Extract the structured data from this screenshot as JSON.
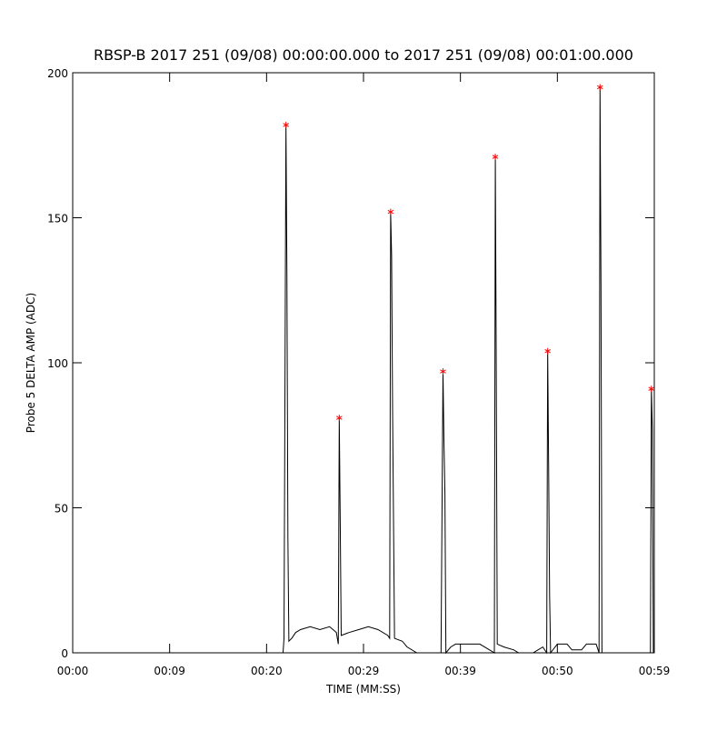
{
  "chart_data": {
    "type": "line",
    "title": "RBSP-B 2017 251 (09/08) 00:00:00.000 to 2017 251 (09/08) 00:01:00.000",
    "x_label": "TIME (MM:SS)",
    "y_label": "Probe 5 DELTA AMP (ADC)",
    "xlim": [
      0,
      60
    ],
    "ylim": [
      0,
      200
    ],
    "xticks": [
      {
        "value": 0,
        "label": "00:00"
      },
      {
        "value": 10,
        "label": "00:09"
      },
      {
        "value": 20,
        "label": "00:20"
      },
      {
        "value": 30,
        "label": "00:29"
      },
      {
        "value": 40,
        "label": "00:39"
      },
      {
        "value": 50,
        "label": "00:50"
      },
      {
        "value": 60,
        "label": "00:59"
      }
    ],
    "yticks": [
      0,
      50,
      100,
      150,
      200
    ],
    "series": [
      {
        "style": "line",
        "color": "#000000",
        "x": [
          0,
          21.7,
          21.8,
          22.0,
          22.1,
          22.2,
          22.3,
          22.6,
          23.0,
          23.5,
          24.5,
          25.5,
          26.5,
          27.2,
          27.4,
          27.5,
          27.6,
          27.7,
          28.5,
          29.5,
          30.5,
          31.5,
          32.5,
          32.7,
          32.8,
          32.9,
          33.0,
          33.2,
          34.0,
          34.5,
          35.5,
          38.0,
          38.2,
          38.3,
          38.4,
          38.5,
          39.0,
          39.5,
          41.0,
          42.0,
          43.0,
          43.5,
          43.6,
          43.7,
          43.8,
          44.5,
          45.5,
          46.0,
          47.5,
          48.0,
          48.5,
          48.9,
          49.0,
          49.1,
          49.2,
          49.3,
          50.0,
          51.0,
          51.5,
          52.5,
          53.0,
          54.0,
          54.3,
          54.4,
          54.5,
          54.6,
          59.6,
          59.7,
          59.8,
          59.9
        ],
        "values": [
          0,
          0,
          5,
          182,
          130,
          40,
          4,
          5,
          7,
          8,
          9,
          8,
          9,
          7,
          3,
          81,
          45,
          6,
          7,
          8,
          9,
          8,
          6,
          5,
          152,
          137,
          84,
          5,
          4,
          2,
          0,
          0,
          97,
          73,
          55,
          0,
          2,
          3,
          3,
          3,
          1,
          0,
          171,
          95,
          3,
          2,
          1,
          0,
          0,
          1,
          2,
          0,
          104,
          64,
          20,
          0,
          3,
          3,
          1,
          1,
          3,
          3,
          0,
          195,
          127,
          0,
          0,
          91,
          77,
          0
        ]
      },
      {
        "style": "asterisk",
        "color": "#ff0000",
        "x": [
          22.0,
          27.5,
          32.8,
          38.2,
          43.6,
          49.0,
          54.4,
          59.7
        ],
        "values": [
          182,
          81,
          152,
          97,
          171,
          104,
          195,
          91
        ]
      }
    ]
  }
}
